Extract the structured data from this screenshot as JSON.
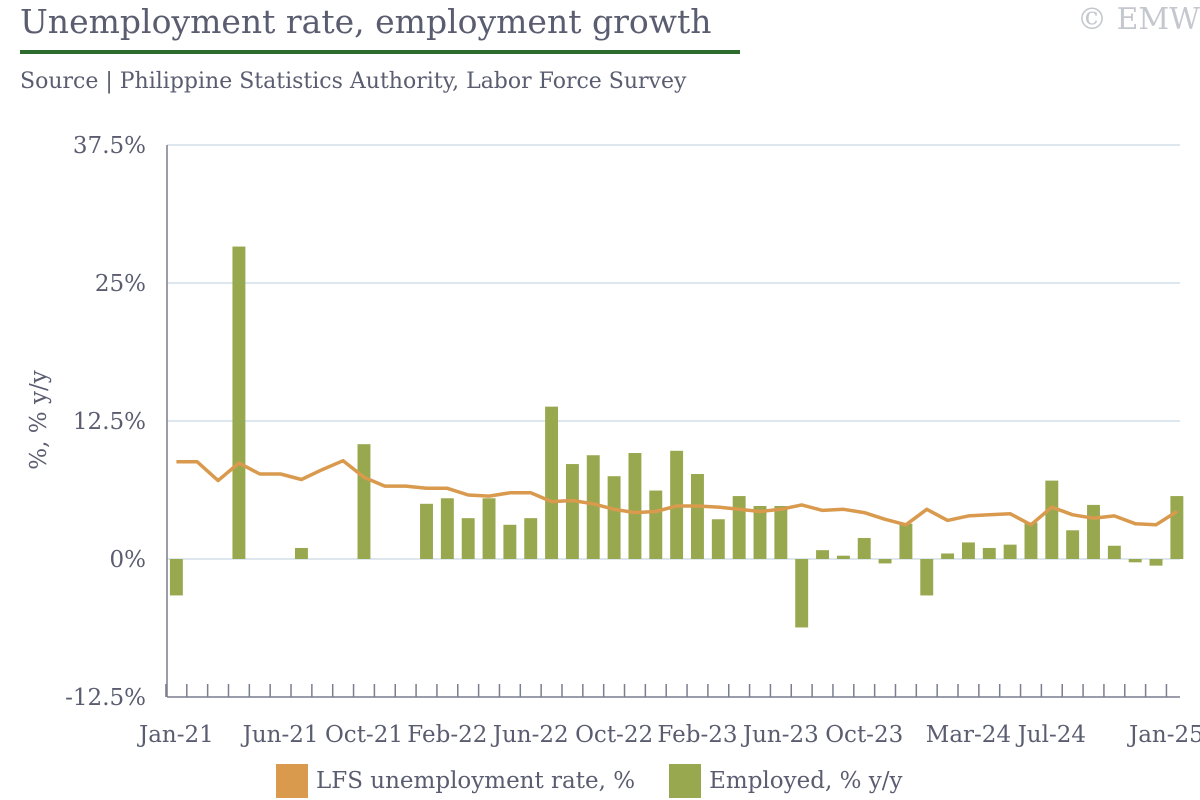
{
  "header": {
    "title": "Unemployment rate, employment growth",
    "copyright": "© EMW",
    "subtitle": "Source | Philippine Statistics Authority, Labor Force Survey"
  },
  "legend": {
    "unemployment_label": "LFS unemployment rate, %",
    "employed_label": "Employed, % y/y"
  },
  "colors": {
    "line": "#d99a4e",
    "bar": "#98a84f",
    "grid": "#d3dde8",
    "axis": "#7a7e8e",
    "text": "#5a5d70"
  },
  "chart_data": {
    "type": "bar",
    "ylabel": "%, % y/y",
    "ylim": [
      -12.5,
      37.5
    ],
    "yticks": [
      "37.5%",
      "25%",
      "12.5%",
      "0%",
      "-12.5%"
    ],
    "ytick_values": [
      37.5,
      25,
      12.5,
      0,
      -12.5
    ],
    "grid": true,
    "legend_position": "bottom",
    "x": [
      "Jan-21",
      "Feb-21",
      "Mar-21",
      "Apr-21",
      "May-21",
      "Jun-21",
      "Jul-21",
      "Aug-21",
      "Sep-21",
      "Oct-21",
      "Nov-21",
      "Dec-21",
      "Jan-22",
      "Feb-22",
      "Mar-22",
      "Apr-22",
      "May-22",
      "Jun-22",
      "Jul-22",
      "Aug-22",
      "Sep-22",
      "Oct-22",
      "Nov-22",
      "Dec-22",
      "Jan-23",
      "Feb-23",
      "Mar-23",
      "Apr-23",
      "May-23",
      "Jun-23",
      "Jul-23",
      "Aug-23",
      "Sep-23",
      "Oct-23",
      "Nov-23",
      "Dec-23",
      "Jan-24",
      "Feb-24",
      "Mar-24",
      "Apr-24",
      "May-24",
      "Jun-24",
      "Jul-24",
      "Aug-24",
      "Sep-24",
      "Oct-24",
      "Nov-24",
      "Dec-24",
      "Jan-25"
    ],
    "x_tick_labels": [
      {
        "index": 0,
        "label": "Jan-21"
      },
      {
        "index": 5,
        "label": "Jun-21"
      },
      {
        "index": 9,
        "label": "Oct-21"
      },
      {
        "index": 13,
        "label": "Feb-22"
      },
      {
        "index": 17,
        "label": "Jun-22"
      },
      {
        "index": 21,
        "label": "Oct-22"
      },
      {
        "index": 25,
        "label": "Feb-23"
      },
      {
        "index": 29,
        "label": "Jun-23"
      },
      {
        "index": 33,
        "label": "Oct-23"
      },
      {
        "index": 38,
        "label": "Mar-24"
      },
      {
        "index": 42,
        "label": "Jul-24"
      },
      {
        "index": 48,
        "label": "Jan-25"
      }
    ],
    "series": [
      {
        "name": "Employed, % y/y",
        "type": "bar",
        "values": [
          -3.3,
          null,
          null,
          28.3,
          null,
          null,
          1.0,
          null,
          null,
          10.4,
          null,
          null,
          5.0,
          5.5,
          3.7,
          5.5,
          3.1,
          3.7,
          13.8,
          8.6,
          9.4,
          7.5,
          9.6,
          6.2,
          9.8,
          7.7,
          3.6,
          5.7,
          4.8,
          4.8,
          -6.2,
          0.8,
          0.3,
          1.9,
          -0.4,
          3.2,
          -3.3,
          0.5,
          1.5,
          1.0,
          1.3,
          3.3,
          7.1,
          2.6,
          4.9,
          1.2,
          -0.3,
          -0.6,
          5.7
        ]
      },
      {
        "name": "LFS unemployment rate, %",
        "type": "line",
        "values": [
          8.8,
          8.8,
          7.1,
          8.7,
          7.7,
          7.7,
          7.2,
          8.1,
          8.9,
          7.4,
          6.6,
          6.6,
          6.4,
          6.4,
          5.8,
          5.7,
          6.0,
          6.0,
          5.2,
          5.3,
          5.0,
          4.5,
          4.2,
          4.3,
          4.8,
          4.8,
          4.7,
          4.5,
          4.3,
          4.5,
          4.9,
          4.4,
          4.5,
          4.2,
          3.6,
          3.1,
          4.5,
          3.5,
          3.9,
          4.0,
          4.1,
          3.1,
          4.7,
          4.0,
          3.7,
          3.9,
          3.2,
          3.1,
          4.3
        ]
      }
    ]
  }
}
